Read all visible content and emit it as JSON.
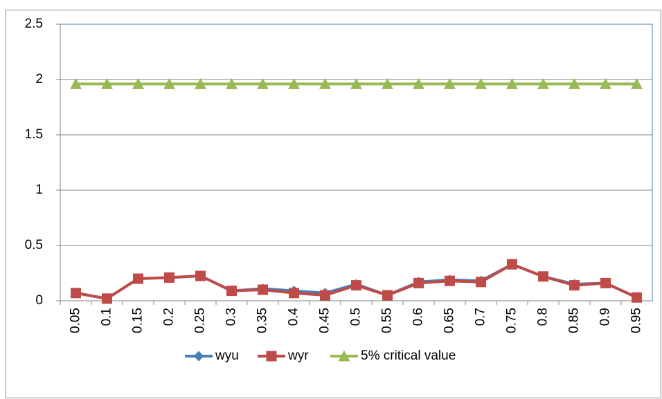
{
  "chart_data": {
    "type": "line",
    "categories": [
      "0.05",
      "0.1",
      "0.15",
      "0.2",
      "0.25",
      "0.3",
      "0.35",
      "0.4",
      "0.45",
      "0.5",
      "0.55",
      "0.6",
      "0.65",
      "0.7",
      "0.75",
      "0.8",
      "0.85",
      "0.9",
      "0.95"
    ],
    "series": [
      {
        "name": "wyu",
        "color": "#4a7ebb",
        "marker": "diamond",
        "values": [
          0.07,
          0.02,
          0.2,
          0.21,
          0.225,
          0.09,
          0.11,
          0.09,
          0.07,
          0.15,
          0.05,
          0.17,
          0.19,
          0.18,
          0.33,
          0.22,
          0.15,
          0.16,
          0.03
        ]
      },
      {
        "name": "wyr",
        "color": "#be4b48",
        "marker": "square",
        "values": [
          0.07,
          0.02,
          0.2,
          0.21,
          0.225,
          0.09,
          0.1,
          0.07,
          0.05,
          0.14,
          0.05,
          0.16,
          0.18,
          0.17,
          0.33,
          0.22,
          0.14,
          0.16,
          0.03
        ]
      },
      {
        "name": "5% critical value",
        "color": "#98b954",
        "marker": "triangle",
        "values": [
          1.96,
          1.96,
          1.96,
          1.96,
          1.96,
          1.96,
          1.96,
          1.96,
          1.96,
          1.96,
          1.96,
          1.96,
          1.96,
          1.96,
          1.96,
          1.96,
          1.96,
          1.96,
          1.96
        ]
      }
    ],
    "ylim": [
      0,
      2.5
    ],
    "yticks": [
      0,
      0.5,
      1,
      1.5,
      2,
      2.5
    ],
    "grid": true,
    "legend": "bottom"
  }
}
